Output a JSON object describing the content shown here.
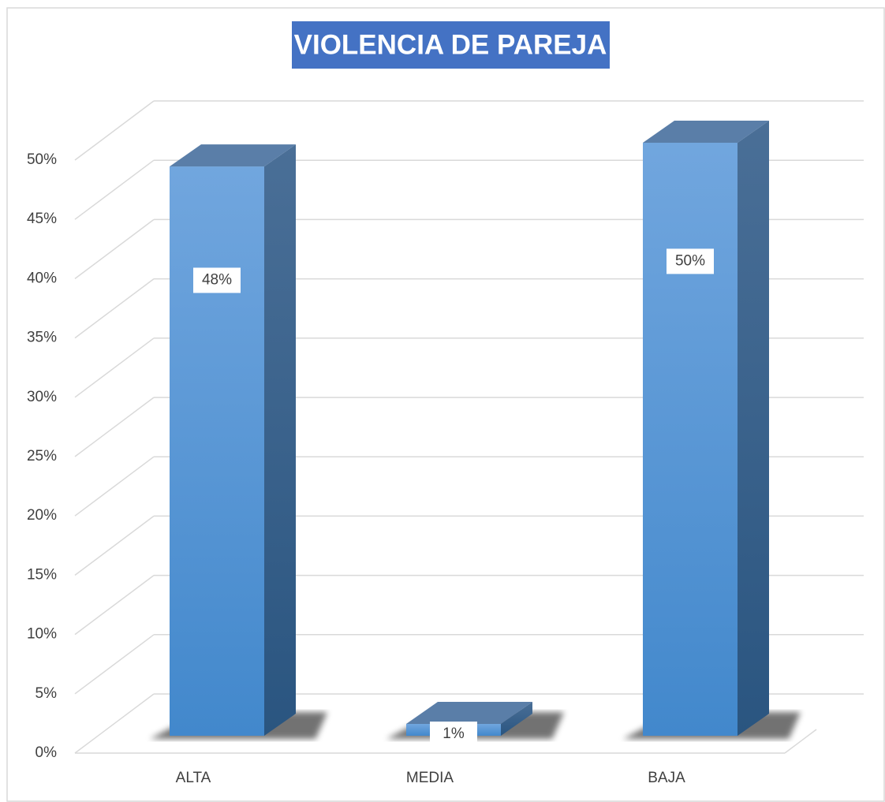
{
  "chart_data": {
    "type": "bar3d",
    "title": "VIOLENCIA DE PAREJA",
    "categories": [
      "ALTA",
      "MEDIA",
      "BAJA"
    ],
    "values": [
      48,
      1,
      50
    ],
    "value_labels": [
      "48%",
      "1%",
      "50%"
    ],
    "color": "#5b9bd5",
    "ylim": [
      0,
      50
    ],
    "yticks": [
      {
        "value": 0,
        "label": "0%"
      },
      {
        "value": 5,
        "label": "5%"
      },
      {
        "value": 10,
        "label": "10%"
      },
      {
        "value": 15,
        "label": "15%"
      },
      {
        "value": 20,
        "label": "20%"
      },
      {
        "value": 25,
        "label": "25%"
      },
      {
        "value": 30,
        "label": "30%"
      },
      {
        "value": 35,
        "label": "35%"
      },
      {
        "value": 40,
        "label": "40%"
      },
      {
        "value": 45,
        "label": "45%"
      },
      {
        "value": 50,
        "label": "50%"
      }
    ],
    "grid": true
  }
}
